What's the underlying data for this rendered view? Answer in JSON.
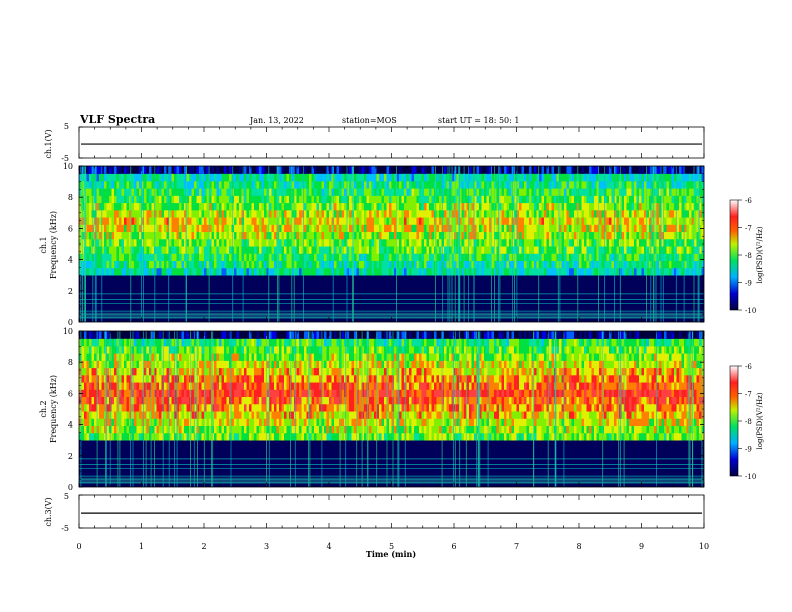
{
  "header": {
    "title": "VLF Spectra",
    "date": "Jan. 13, 2022",
    "station": "station=MOS",
    "start_time": "start UT =   18: 50: 1"
  },
  "chart_data": [
    {
      "type": "line",
      "panel": "ch1-waveform",
      "ylabel": "ch.1(V)",
      "ylim": [
        -5,
        5
      ],
      "ytick_labels": [
        "5",
        "-5"
      ],
      "series": [
        {
          "values_constant": -0.5
        }
      ]
    },
    {
      "type": "heatmap",
      "panel": "ch1-spectrogram",
      "ylabel": "ch.1\nFrequency (kHz)",
      "ylim": [
        0,
        10
      ],
      "ytick_labels": [
        "0",
        "2",
        "4",
        "6",
        "8",
        "10"
      ],
      "colorbar": {
        "label": "log(PSD)(V²/Hz)",
        "range": [
          -10,
          -6
        ],
        "tick_labels": [
          "-6",
          "-7",
          "-8",
          "-9",
          "-10"
        ]
      },
      "bands_khz": {
        "dark": [
          0,
          3
        ],
        "emission": [
          3,
          9.5
        ]
      },
      "emission_level": "moderate"
    },
    {
      "type": "heatmap",
      "panel": "ch2-spectrogram",
      "ylabel": "ch.2\nFrequency (kHz)",
      "ylim": [
        0,
        10
      ],
      "ytick_labels": [
        "0",
        "2",
        "4",
        "6",
        "8",
        "10"
      ],
      "colorbar": {
        "label": "log(PSD)(V²/Hz)",
        "range": [
          -10,
          -6
        ],
        "tick_labels": [
          "-6",
          "-7",
          "-8",
          "-9",
          "-10"
        ]
      },
      "bands_khz": {
        "dark": [
          0,
          3
        ],
        "emission": [
          3,
          9.5
        ]
      },
      "emission_level": "strong"
    },
    {
      "type": "line",
      "panel": "ch3-waveform",
      "ylabel": "ch.3(V)",
      "ylim": [
        -5,
        5
      ],
      "ytick_labels": [
        "5",
        "-5"
      ],
      "series": [
        {
          "values_constant": -0.5
        }
      ]
    }
  ],
  "xaxis": {
    "xlabel": "Time (min)",
    "xlim": [
      0,
      10
    ],
    "tick_labels": [
      "0",
      "1",
      "2",
      "3",
      "4",
      "5",
      "6",
      "7",
      "8",
      "9",
      "10"
    ]
  }
}
